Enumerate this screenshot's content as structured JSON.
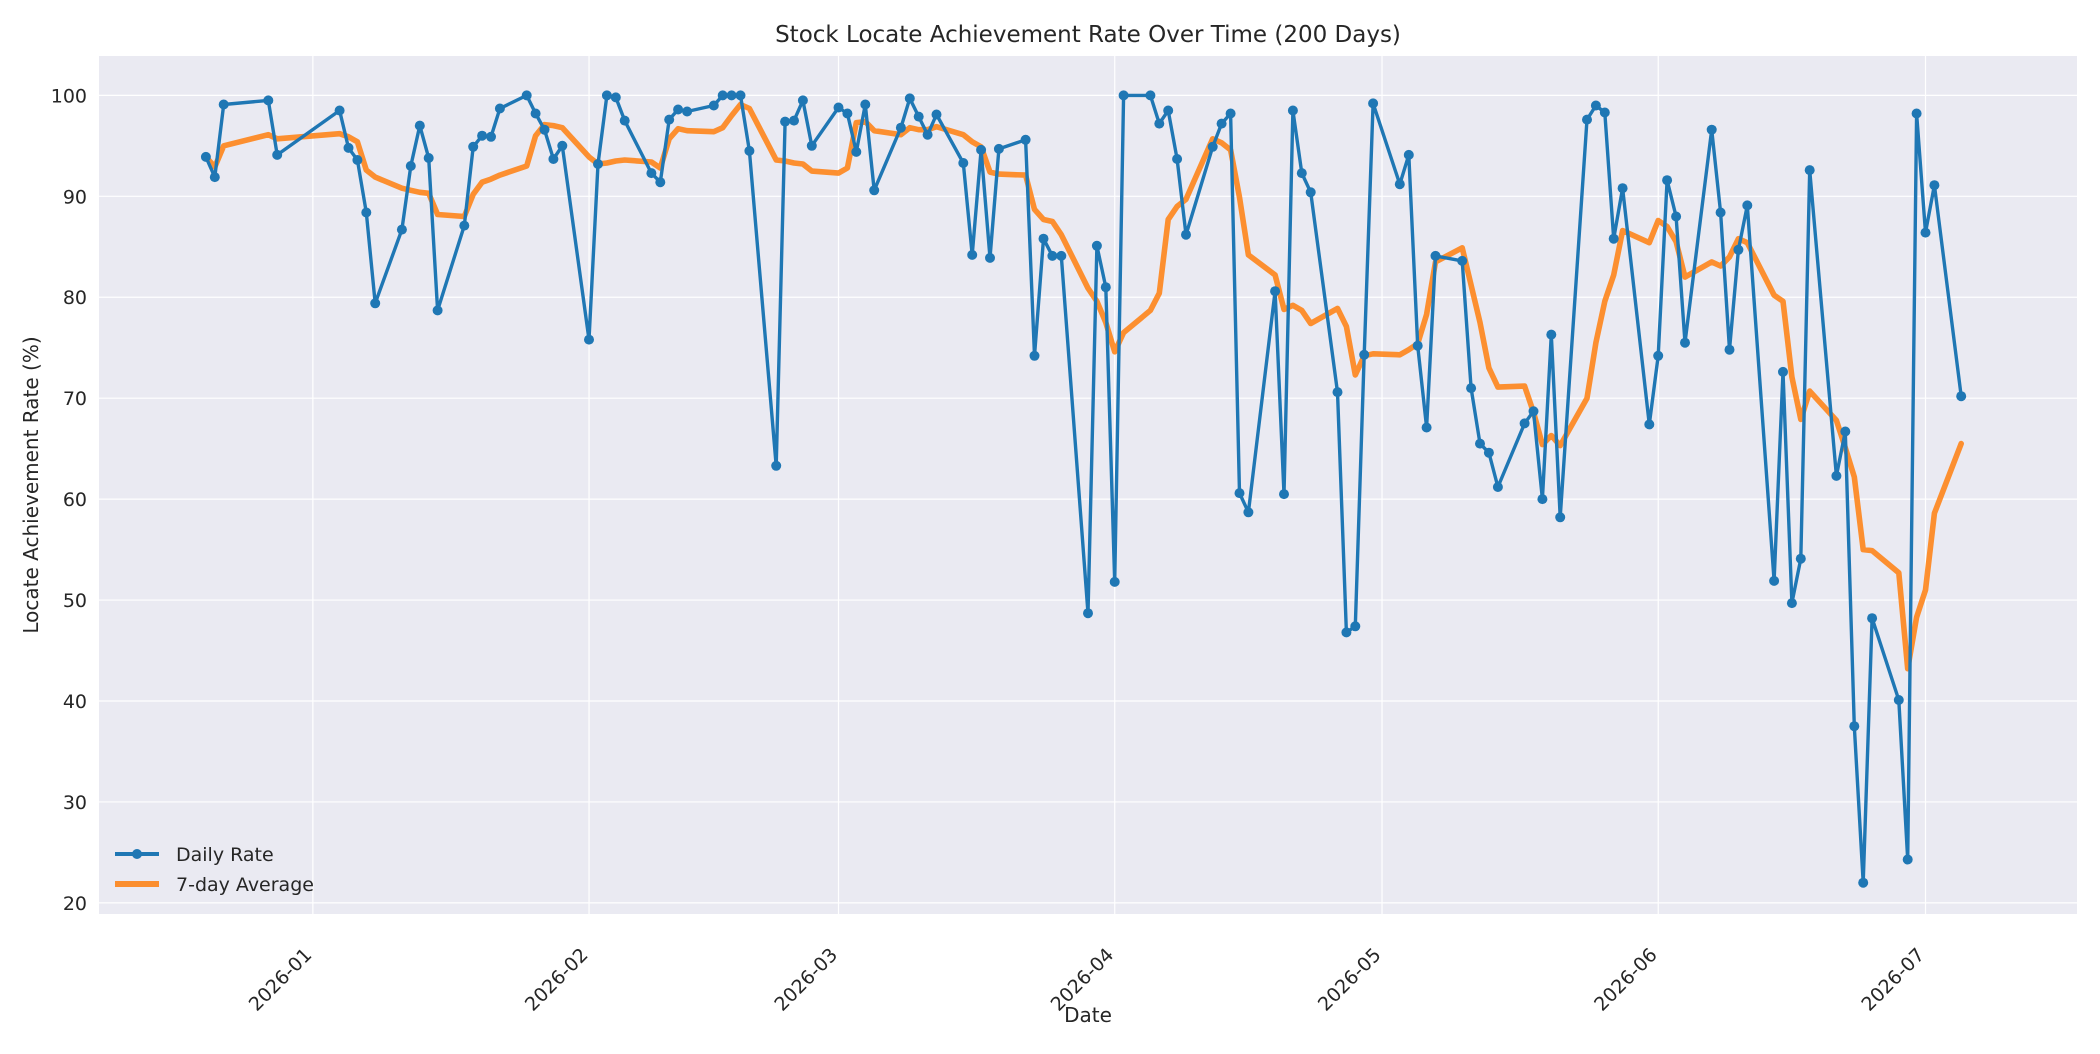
{
  "chart_data": {
    "type": "line",
    "title": "Stock Locate Achievement Rate Over Time (200 Days)",
    "xlabel": "Date",
    "ylabel": "Locate Achievement Rate (%)",
    "xlim": [
      "2025-12-08",
      "2026-07-18"
    ],
    "ylim": [
      18.9,
      103.9
    ],
    "x_ticks": [
      "2026-01-01",
      "2026-02-01",
      "2026-03-01",
      "2026-04-01",
      "2026-05-01",
      "2026-06-01",
      "2026-07-01"
    ],
    "x_tick_labels": [
      "2026-01",
      "2026-02",
      "2026-03",
      "2026-04",
      "2026-05",
      "2026-06",
      "2026-07"
    ],
    "y_ticks": [
      20,
      30,
      40,
      50,
      60,
      70,
      80,
      90,
      100
    ],
    "y_tick_labels": [
      "20",
      "30",
      "40",
      "50",
      "60",
      "70",
      "80",
      "90",
      "100"
    ],
    "grid": true,
    "legend_position": "lower-left",
    "series": [
      {
        "name": "Daily Rate",
        "color": "#1f77b4",
        "marker": "circle",
        "points": [
          [
            "2025-12-20",
            93.9
          ],
          [
            "2025-12-21",
            91.9
          ],
          [
            "2025-12-22",
            99.1
          ],
          [
            "2025-12-27",
            99.5
          ],
          [
            "2025-12-28",
            94.1
          ],
          [
            "2026-01-04",
            98.5
          ],
          [
            "2026-01-05",
            94.8
          ],
          [
            "2026-01-06",
            93.6
          ],
          [
            "2026-01-07",
            88.4
          ],
          [
            "2026-01-08",
            79.4
          ],
          [
            "2026-01-11",
            86.7
          ],
          [
            "2026-01-12",
            93.0
          ],
          [
            "2026-01-13",
            97.0
          ],
          [
            "2026-01-14",
            93.8
          ],
          [
            "2026-01-15",
            78.7
          ],
          [
            "2026-01-18",
            87.1
          ],
          [
            "2026-01-19",
            94.9
          ],
          [
            "2026-01-20",
            96.0
          ],
          [
            "2026-01-21",
            95.9
          ],
          [
            "2026-01-22",
            98.7
          ],
          [
            "2026-01-25",
            100.0
          ],
          [
            "2026-01-26",
            98.2
          ],
          [
            "2026-01-27",
            96.6
          ],
          [
            "2026-01-28",
            93.7
          ],
          [
            "2026-01-29",
            95.0
          ],
          [
            "2026-02-01",
            75.8
          ],
          [
            "2026-02-02",
            93.2
          ],
          [
            "2026-02-03",
            100.0
          ],
          [
            "2026-02-04",
            99.8
          ],
          [
            "2026-02-05",
            97.5
          ],
          [
            "2026-02-08",
            92.3
          ],
          [
            "2026-02-09",
            91.4
          ],
          [
            "2026-02-10",
            97.6
          ],
          [
            "2026-02-11",
            98.6
          ],
          [
            "2026-02-12",
            98.4
          ],
          [
            "2026-02-15",
            99.0
          ],
          [
            "2026-02-16",
            100.0
          ],
          [
            "2026-02-17",
            100.0
          ],
          [
            "2026-02-18",
            100.0
          ],
          [
            "2026-02-19",
            94.5
          ],
          [
            "2026-02-22",
            63.3
          ],
          [
            "2026-02-23",
            97.4
          ],
          [
            "2026-02-24",
            97.5
          ],
          [
            "2026-02-25",
            99.5
          ],
          [
            "2026-02-26",
            95.0
          ],
          [
            "2026-03-01",
            98.8
          ],
          [
            "2026-03-02",
            98.2
          ],
          [
            "2026-03-03",
            94.4
          ],
          [
            "2026-03-04",
            99.1
          ],
          [
            "2026-03-05",
            90.6
          ],
          [
            "2026-03-08",
            96.8
          ],
          [
            "2026-03-09",
            99.7
          ],
          [
            "2026-03-10",
            97.9
          ],
          [
            "2026-03-11",
            96.1
          ],
          [
            "2026-03-12",
            98.1
          ],
          [
            "2026-03-15",
            93.3
          ],
          [
            "2026-03-16",
            84.2
          ],
          [
            "2026-03-17",
            94.6
          ],
          [
            "2026-03-18",
            83.9
          ],
          [
            "2026-03-19",
            94.7
          ],
          [
            "2026-03-22",
            95.6
          ],
          [
            "2026-03-23",
            74.2
          ],
          [
            "2026-03-24",
            85.8
          ],
          [
            "2026-03-25",
            84.1
          ],
          [
            "2026-03-26",
            84.1
          ],
          [
            "2026-03-29",
            48.7
          ],
          [
            "2026-03-30",
            85.1
          ],
          [
            "2026-03-31",
            81.0
          ],
          [
            "2026-04-01",
            51.8
          ],
          [
            "2026-04-02",
            100.0
          ],
          [
            "2026-04-05",
            100.0
          ],
          [
            "2026-04-06",
            97.2
          ],
          [
            "2026-04-07",
            98.5
          ],
          [
            "2026-04-08",
            93.7
          ],
          [
            "2026-04-09",
            86.2
          ],
          [
            "2026-04-12",
            94.9
          ],
          [
            "2026-04-13",
            97.2
          ],
          [
            "2026-04-14",
            98.2
          ],
          [
            "2026-04-15",
            60.6
          ],
          [
            "2026-04-16",
            58.7
          ],
          [
            "2026-04-19",
            80.6
          ],
          [
            "2026-04-20",
            60.5
          ],
          [
            "2026-04-21",
            98.5
          ],
          [
            "2026-04-22",
            92.3
          ],
          [
            "2026-04-23",
            90.4
          ],
          [
            "2026-04-26",
            70.6
          ],
          [
            "2026-04-27",
            46.8
          ],
          [
            "2026-04-28",
            47.4
          ],
          [
            "2026-04-29",
            74.3
          ],
          [
            "2026-04-30",
            99.2
          ],
          [
            "2026-05-03",
            91.2
          ],
          [
            "2026-05-04",
            94.1
          ],
          [
            "2026-05-05",
            75.2
          ],
          [
            "2026-05-06",
            67.1
          ],
          [
            "2026-05-07",
            84.1
          ],
          [
            "2026-05-10",
            83.6
          ],
          [
            "2026-05-11",
            71.0
          ],
          [
            "2026-05-12",
            65.5
          ],
          [
            "2026-05-13",
            64.6
          ],
          [
            "2026-05-14",
            61.2
          ],
          [
            "2026-05-17",
            67.5
          ],
          [
            "2026-05-18",
            68.7
          ],
          [
            "2026-05-19",
            60.0
          ],
          [
            "2026-05-20",
            76.3
          ],
          [
            "2026-05-21",
            58.2
          ],
          [
            "2026-05-24",
            97.6
          ],
          [
            "2026-05-25",
            99.0
          ],
          [
            "2026-05-26",
            98.3
          ],
          [
            "2026-05-27",
            85.8
          ],
          [
            "2026-05-28",
            90.8
          ],
          [
            "2026-05-31",
            67.4
          ],
          [
            "2026-06-01",
            74.2
          ],
          [
            "2026-06-02",
            91.6
          ],
          [
            "2026-06-03",
            88.0
          ],
          [
            "2026-06-04",
            75.5
          ],
          [
            "2026-06-07",
            96.6
          ],
          [
            "2026-06-08",
            88.4
          ],
          [
            "2026-06-09",
            74.8
          ],
          [
            "2026-06-10",
            84.7
          ],
          [
            "2026-06-11",
            89.1
          ],
          [
            "2026-06-14",
            51.9
          ],
          [
            "2026-06-15",
            72.6
          ],
          [
            "2026-06-16",
            49.7
          ],
          [
            "2026-06-17",
            54.1
          ],
          [
            "2026-06-18",
            92.6
          ],
          [
            "2026-06-21",
            62.3
          ],
          [
            "2026-06-22",
            66.7
          ],
          [
            "2026-06-23",
            37.5
          ],
          [
            "2026-06-24",
            22.0
          ],
          [
            "2026-06-25",
            48.2
          ],
          [
            "2026-06-28",
            40.1
          ],
          [
            "2026-06-29",
            24.3
          ],
          [
            "2026-06-30",
            98.2
          ],
          [
            "2026-07-01",
            86.4
          ],
          [
            "2026-07-02",
            91.1
          ],
          [
            "2026-07-05",
            70.2
          ]
        ]
      },
      {
        "name": "7-day Average",
        "color": "#ff7f0e",
        "marker": "none",
        "points": [
          [
            "2025-12-20",
            93.9
          ],
          [
            "2025-12-21",
            92.9
          ],
          [
            "2025-12-22",
            95.0
          ],
          [
            "2025-12-27",
            96.1
          ],
          [
            "2025-12-28",
            95.7
          ],
          [
            "2026-01-04",
            96.2
          ],
          [
            "2026-01-05",
            95.9
          ],
          [
            "2026-01-06",
            95.4
          ],
          [
            "2026-01-07",
            92.6
          ],
          [
            "2026-01-08",
            91.9
          ],
          [
            "2026-01-11",
            90.8
          ],
          [
            "2026-01-12",
            90.6
          ],
          [
            "2026-01-13",
            90.4
          ],
          [
            "2026-01-14",
            90.3
          ],
          [
            "2026-01-15",
            88.2
          ],
          [
            "2026-01-18",
            88.0
          ],
          [
            "2026-01-19",
            90.2
          ],
          [
            "2026-01-20",
            91.4
          ],
          [
            "2026-01-21",
            91.7
          ],
          [
            "2026-01-22",
            92.1
          ],
          [
            "2026-01-25",
            93.0
          ],
          [
            "2026-01-26",
            96.0
          ],
          [
            "2026-01-27",
            97.1
          ],
          [
            "2026-01-28",
            97.0
          ],
          [
            "2026-01-29",
            96.8
          ],
          [
            "2026-02-01",
            93.9
          ],
          [
            "2026-02-02",
            93.2
          ],
          [
            "2026-02-03",
            93.3
          ],
          [
            "2026-02-04",
            93.5
          ],
          [
            "2026-02-05",
            93.6
          ],
          [
            "2026-02-08",
            93.4
          ],
          [
            "2026-02-09",
            92.8
          ],
          [
            "2026-02-10",
            95.7
          ],
          [
            "2026-02-11",
            96.7
          ],
          [
            "2026-02-12",
            96.5
          ],
          [
            "2026-02-15",
            96.4
          ],
          [
            "2026-02-16",
            96.8
          ],
          [
            "2026-02-17",
            98.0
          ],
          [
            "2026-02-18",
            99.1
          ],
          [
            "2026-02-19",
            98.7
          ],
          [
            "2026-02-22",
            93.6
          ],
          [
            "2026-02-23",
            93.5
          ],
          [
            "2026-02-24",
            93.3
          ],
          [
            "2026-02-25",
            93.2
          ],
          [
            "2026-02-26",
            92.5
          ],
          [
            "2026-03-01",
            92.3
          ],
          [
            "2026-03-02",
            92.8
          ],
          [
            "2026-03-03",
            97.3
          ],
          [
            "2026-03-04",
            97.4
          ],
          [
            "2026-03-05",
            96.5
          ],
          [
            "2026-03-08",
            96.1
          ],
          [
            "2026-03-09",
            96.8
          ],
          [
            "2026-03-10",
            96.6
          ],
          [
            "2026-03-11",
            96.6
          ],
          [
            "2026-03-12",
            96.9
          ],
          [
            "2026-03-15",
            96.1
          ],
          [
            "2026-03-16",
            95.4
          ],
          [
            "2026-03-17",
            94.9
          ],
          [
            "2026-03-18",
            92.4
          ],
          [
            "2026-03-19",
            92.2
          ],
          [
            "2026-03-22",
            92.1
          ],
          [
            "2026-03-23",
            88.7
          ],
          [
            "2026-03-24",
            87.7
          ],
          [
            "2026-03-25",
            87.5
          ],
          [
            "2026-03-26",
            86.2
          ],
          [
            "2026-03-29",
            80.9
          ],
          [
            "2026-03-30",
            79.6
          ],
          [
            "2026-03-31",
            77.5
          ],
          [
            "2026-04-01",
            74.6
          ],
          [
            "2026-04-02",
            76.5
          ],
          [
            "2026-04-05",
            78.7
          ],
          [
            "2026-04-06",
            80.4
          ],
          [
            "2026-04-07",
            87.7
          ],
          [
            "2026-04-08",
            89.0
          ],
          [
            "2026-04-09",
            89.7
          ],
          [
            "2026-04-12",
            95.7
          ],
          [
            "2026-04-13",
            95.3
          ],
          [
            "2026-04-14",
            94.6
          ],
          [
            "2026-04-15",
            89.9
          ],
          [
            "2026-04-16",
            84.2
          ],
          [
            "2026-04-19",
            82.2
          ],
          [
            "2026-04-20",
            78.8
          ],
          [
            "2026-04-21",
            79.2
          ],
          [
            "2026-04-22",
            78.7
          ],
          [
            "2026-04-23",
            77.4
          ],
          [
            "2026-04-26",
            78.9
          ],
          [
            "2026-04-27",
            77.1
          ],
          [
            "2026-04-28",
            72.3
          ],
          [
            "2026-04-29",
            74.2
          ],
          [
            "2026-04-30",
            74.4
          ],
          [
            "2026-05-03",
            74.3
          ],
          [
            "2026-05-04",
            74.8
          ],
          [
            "2026-05-05",
            75.4
          ],
          [
            "2026-05-06",
            78.3
          ],
          [
            "2026-05-07",
            83.5
          ],
          [
            "2026-05-10",
            84.9
          ],
          [
            "2026-05-11",
            81.2
          ],
          [
            "2026-05-12",
            77.5
          ],
          [
            "2026-05-13",
            73.0
          ],
          [
            "2026-05-14",
            71.1
          ],
          [
            "2026-05-17",
            71.2
          ],
          [
            "2026-05-18",
            68.6
          ],
          [
            "2026-05-19",
            65.4
          ],
          [
            "2026-05-20",
            66.3
          ],
          [
            "2026-05-21",
            65.3
          ],
          [
            "2026-05-24",
            70.0
          ],
          [
            "2026-05-25",
            75.5
          ],
          [
            "2026-05-26",
            79.6
          ],
          [
            "2026-05-27",
            82.2
          ],
          [
            "2026-05-28",
            86.6
          ],
          [
            "2026-05-31",
            85.4
          ],
          [
            "2026-06-01",
            87.6
          ],
          [
            "2026-06-02",
            87.0
          ],
          [
            "2026-06-03",
            85.5
          ],
          [
            "2026-06-04",
            82.0
          ],
          [
            "2026-06-07",
            83.5
          ],
          [
            "2026-06-08",
            83.1
          ],
          [
            "2026-06-09",
            84.0
          ],
          [
            "2026-06-10",
            85.8
          ],
          [
            "2026-06-11",
            85.4
          ],
          [
            "2026-06-14",
            80.2
          ],
          [
            "2026-06-15",
            79.6
          ],
          [
            "2026-06-16",
            72.1
          ],
          [
            "2026-06-17",
            67.9
          ],
          [
            "2026-06-18",
            70.7
          ],
          [
            "2026-06-21",
            67.8
          ],
          [
            "2026-06-22",
            65.1
          ],
          [
            "2026-06-23",
            62.2
          ],
          [
            "2026-06-24",
            55.0
          ],
          [
            "2026-06-25",
            54.9
          ],
          [
            "2026-06-28",
            52.7
          ],
          [
            "2026-06-29",
            43.2
          ],
          [
            "2026-06-30",
            48.3
          ],
          [
            "2026-07-01",
            51.0
          ],
          [
            "2026-07-02",
            58.6
          ],
          [
            "2026-07-05",
            65.5
          ]
        ]
      }
    ]
  }
}
